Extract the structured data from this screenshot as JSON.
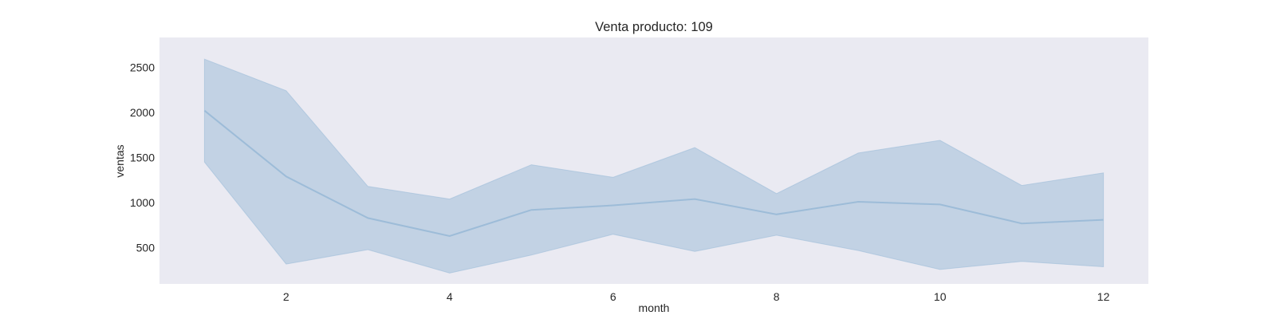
{
  "chart_data": {
    "type": "line",
    "title": "Venta producto: 109",
    "xlabel": "month",
    "ylabel": "ventas",
    "xlim": [
      0.45,
      12.55
    ],
    "ylim": [
      100,
      2830
    ],
    "x_ticks": [
      2,
      4,
      6,
      8,
      10,
      12
    ],
    "y_ticks": [
      500,
      1000,
      1500,
      2000,
      2500
    ],
    "grid": false,
    "background_color": "#eaeaf2",
    "line_color": "#9dbcd8",
    "band_color": "#c2d2e4",
    "x": [
      1,
      2,
      3,
      4,
      5,
      6,
      7,
      8,
      9,
      10,
      11,
      12
    ],
    "series": [
      {
        "values": [
          2020,
          1290,
          830,
          630,
          920,
          970,
          1040,
          870,
          1010,
          980,
          770,
          810
        ],
        "ci_upper": [
          2590,
          2240,
          1180,
          1040,
          1420,
          1280,
          1610,
          1100,
          1550,
          1690,
          1190,
          1330
        ],
        "ci_lower": [
          1450,
          320,
          480,
          220,
          420,
          650,
          460,
          640,
          470,
          260,
          350,
          290
        ]
      }
    ]
  }
}
